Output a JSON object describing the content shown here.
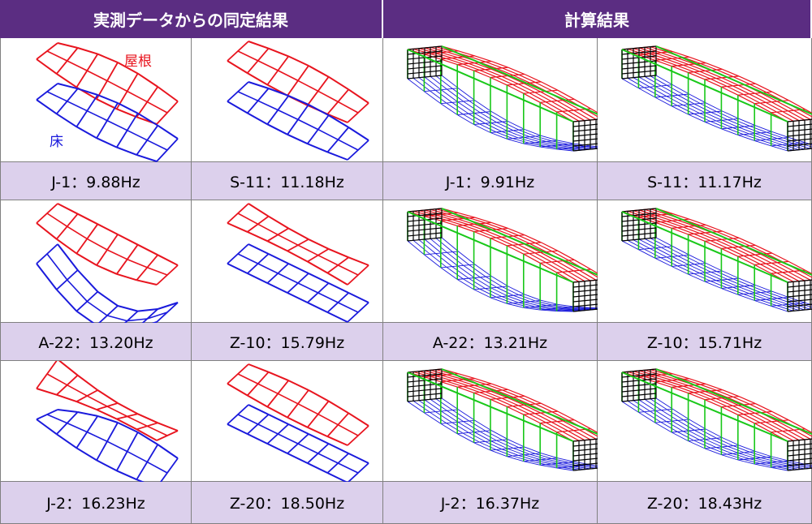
{
  "headers": {
    "measured": "実測データからの同定結果",
    "calculated": "計算結果"
  },
  "legend": {
    "roof": "屋根",
    "floor": "床",
    "roof_color": "#e8141e",
    "floor_color": "#1a1adc",
    "side_color": "#19c819",
    "end_color": "#000000"
  },
  "rows": [
    {
      "labels": [
        "J-1：9.88Hz",
        "S-11：11.18Hz",
        "J-1：9.91Hz",
        "S-11：11.17Hz"
      ]
    },
    {
      "labels": [
        "A-22：13.20Hz",
        "Z-10：15.79Hz",
        "A-22：13.21Hz",
        "Z-10：15.71Hz"
      ]
    },
    {
      "labels": [
        "J-2：16.23Hz",
        "Z-20：18.50Hz",
        "J-2：16.37Hz",
        "Z-20：18.43Hz"
      ]
    }
  ]
}
